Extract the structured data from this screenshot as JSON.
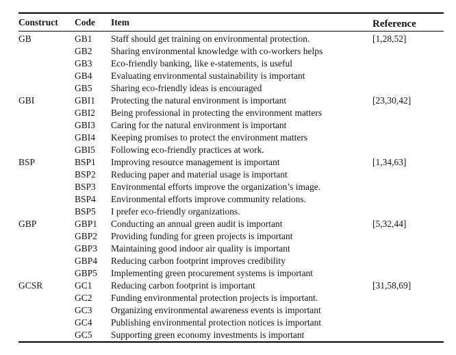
{
  "colors": {
    "background": "#ffffff",
    "text": "#141414",
    "rule": "#000000"
  },
  "table": {
    "columns": [
      "Construct",
      "Code",
      "Item",
      "Reference"
    ],
    "groups": [
      {
        "construct": "GB",
        "reference": "[1,28,52]",
        "rows": [
          {
            "code": "GB1",
            "item": "Staff should get training on environmental protection."
          },
          {
            "code": "GB2",
            "item": "Sharing environmental knowledge with co-workers helps"
          },
          {
            "code": "GB3",
            "item": "Eco-friendly banking, like e-statements, is useful"
          },
          {
            "code": "GB4",
            "item": "Evaluating environmental sustainability is important"
          },
          {
            "code": "GB5",
            "item": "Sharing eco-friendly ideas is encouraged"
          }
        ]
      },
      {
        "construct": "GBI",
        "reference": "[23,30,42]",
        "rows": [
          {
            "code": "GBI1",
            "item": "Protecting the natural environment is important"
          },
          {
            "code": "GBI2",
            "item": "Being professional in protecting the environment matters"
          },
          {
            "code": "GBI3",
            "item": "Caring for the natural environment is important"
          },
          {
            "code": "GBI4",
            "item": "Keeping promises to protect the environment matters"
          },
          {
            "code": "GBI5",
            "item": "Following eco-friendly practices at work."
          }
        ]
      },
      {
        "construct": "BSP",
        "reference": "[1,34,63]",
        "rows": [
          {
            "code": "BSP1",
            "item": "Improving resource management is important"
          },
          {
            "code": "BSP2",
            "item": "Reducing paper and material usage is important"
          },
          {
            "code": "BSP3",
            "item": "Environmental efforts improve the organization’s image."
          },
          {
            "code": "BSP4",
            "item": "Environmental efforts improve community relations."
          },
          {
            "code": "BSP5",
            "item": "I prefer eco-friendly organizations."
          }
        ]
      },
      {
        "construct": "GBP",
        "reference": "[5,32,44]",
        "rows": [
          {
            "code": "GBP1",
            "item": "Conducting an annual green audit is important"
          },
          {
            "code": "GBP2",
            "item": "Providing funding for green projects is important"
          },
          {
            "code": "GBP3",
            "item": "Maintaining good indoor air quality is important"
          },
          {
            "code": "GBP4",
            "item": "Reducing carbon footprint improves credibility"
          },
          {
            "code": "GBP5",
            "item": "Implementing green procurement systems is important"
          }
        ]
      },
      {
        "construct": "GCSR",
        "reference": "[31,58,69]",
        "rows": [
          {
            "code": "GC1",
            "item": "Reducing carbon footprint is important"
          },
          {
            "code": "GC2",
            "item": "Funding environmental protection projects is important."
          },
          {
            "code": "GC3",
            "item": "Organizing environmental awareness events is important"
          },
          {
            "code": "GC4",
            "item": "Publishing environmental protection notices is important"
          },
          {
            "code": "GC5",
            "item": "Supporting green economy investments is important"
          }
        ]
      }
    ]
  }
}
